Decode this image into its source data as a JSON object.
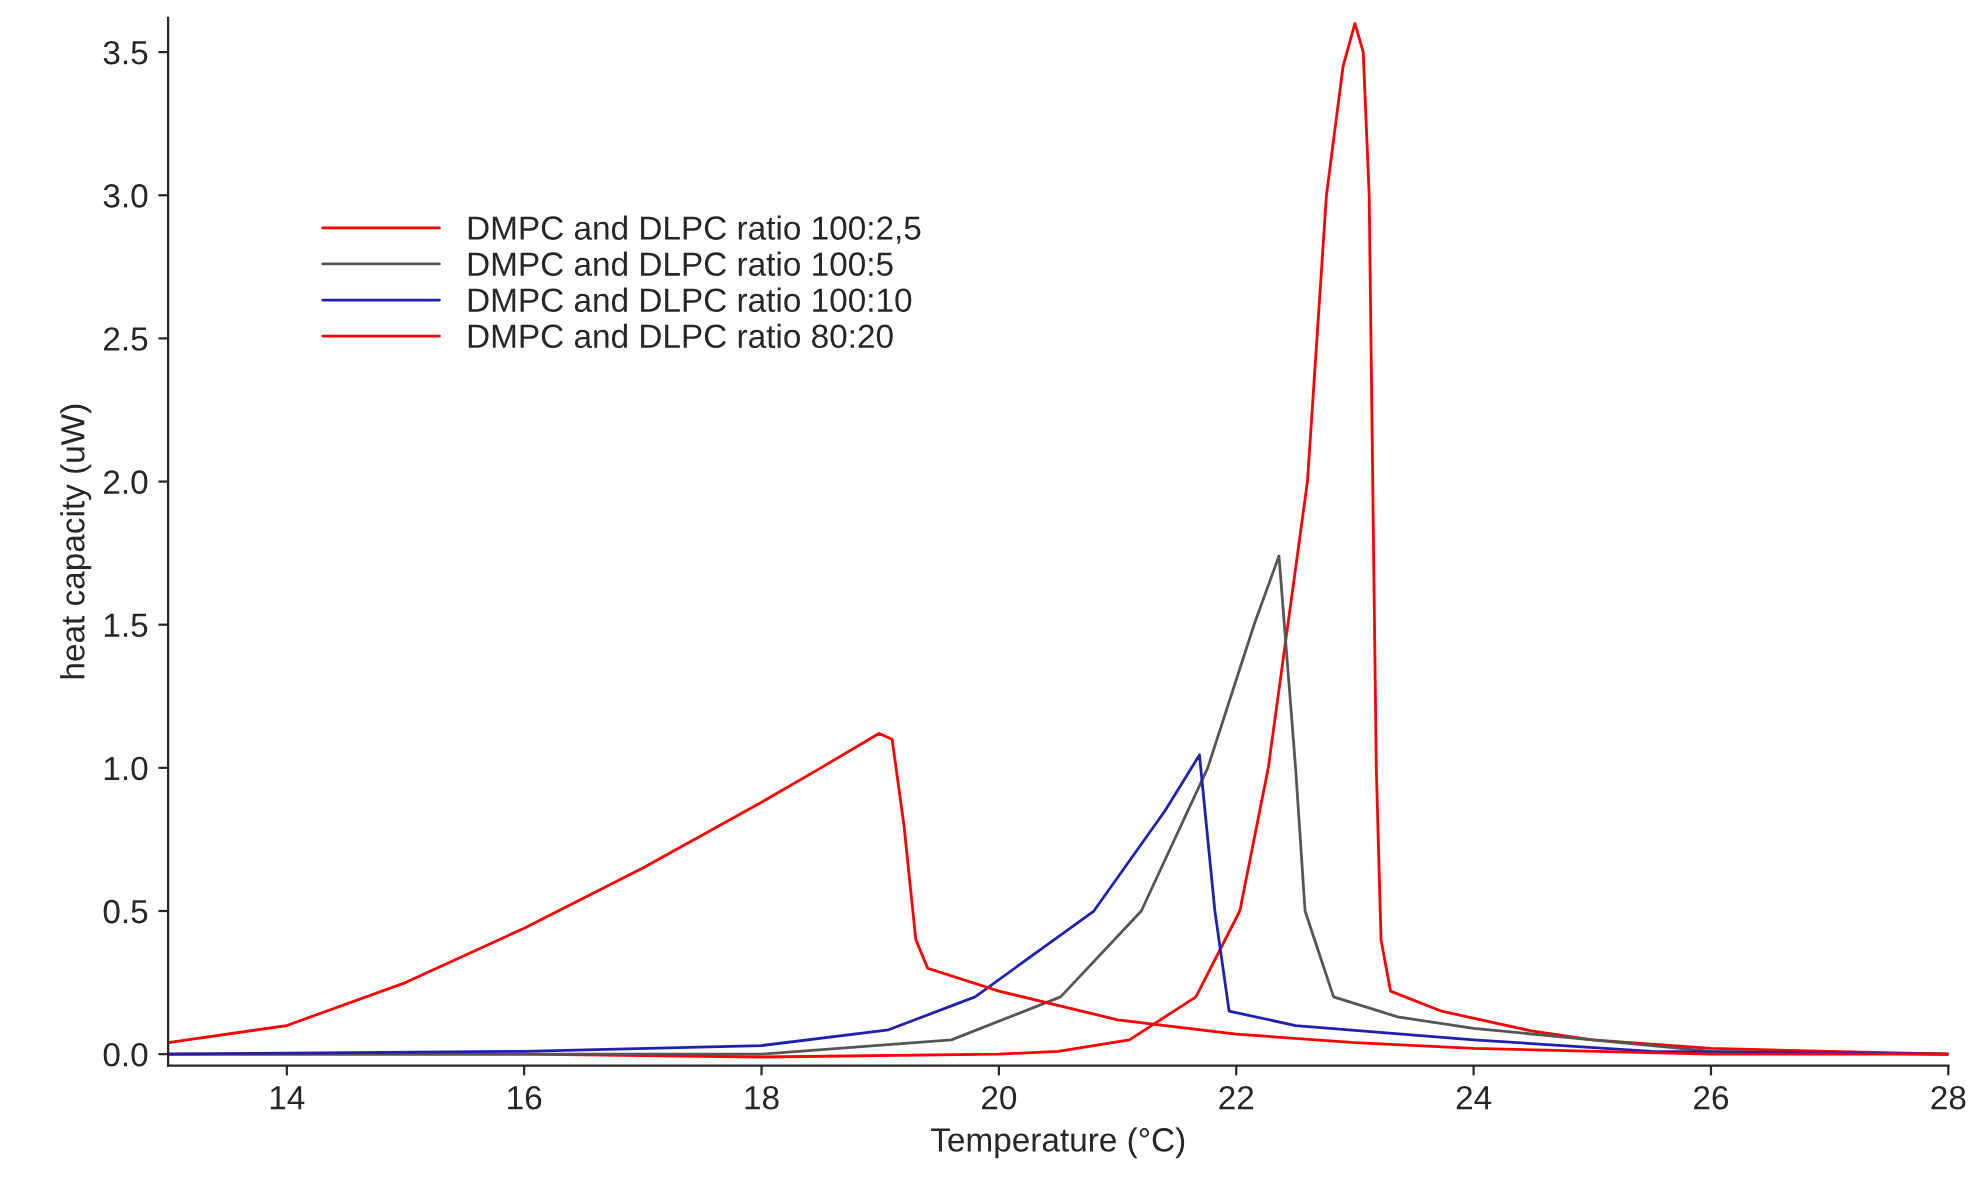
{
  "chart_data": {
    "type": "line",
    "xlabel": "Temperature (°C)",
    "ylabel": "heat capacity (uW)",
    "xlim": [
      13,
      28
    ],
    "ylim": [
      -0.04,
      3.62
    ],
    "xticks": [
      14,
      16,
      18,
      20,
      22,
      24,
      26,
      28
    ],
    "yticks": [
      {
        "value": 0,
        "label": "0.0"
      },
      {
        "value": 0.5,
        "label": "0.5"
      },
      {
        "value": 1,
        "label": "1.0"
      },
      {
        "value": 1.5,
        "label": "1.5"
      },
      {
        "value": 2,
        "label": "2.0"
      },
      {
        "value": 2.5,
        "label": "2.5"
      },
      {
        "value": 3,
        "label": "3.0"
      },
      {
        "value": 3.5,
        "label": "3.5"
      }
    ],
    "grid": false,
    "legend": "top left",
    "marker": "none",
    "line_style": "solid",
    "series": [
      {
        "name": "DMPC and DLPC ratio 100:2,5",
        "color": "#ff0000",
        "x": [
          13,
          16,
          18,
          20,
          20.5,
          21.1,
          21.66,
          22.03,
          22.27,
          22.6,
          22.76,
          22.9,
          23.0,
          23.07,
          23.12,
          23.15,
          23.18,
          23.22,
          23.3,
          23.73,
          24.5,
          25,
          26,
          27,
          28
        ],
        "values": [
          0.0,
          0.0,
          -0.01,
          0.0,
          0.01,
          0.05,
          0.2,
          0.5,
          1.0,
          2.0,
          3.0,
          3.45,
          3.6,
          3.5,
          3.0,
          2.0,
          1.0,
          0.4,
          0.22,
          0.15,
          0.08,
          0.05,
          0.02,
          0.01,
          0.0
        ]
      },
      {
        "name": "DMPC and DLPC ratio 100:5",
        "color": "#555555",
        "x": [
          13,
          16,
          18,
          19.6,
          20.52,
          21.2,
          21.76,
          22.15,
          22.36,
          22.5,
          22.58,
          22.82,
          23.36,
          24,
          25,
          26,
          28
        ],
        "values": [
          0.0,
          0.0,
          0.0,
          0.05,
          0.2,
          0.5,
          1.0,
          1.5,
          1.74,
          1.0,
          0.5,
          0.2,
          0.13,
          0.09,
          0.05,
          0.01,
          0.0
        ]
      },
      {
        "name": "DMPC and DLPC ratio 100:10",
        "color": "#2020b0",
        "x": [
          13,
          16,
          18,
          19.07,
          19.8,
          20.8,
          21.4,
          21.69,
          21.82,
          21.94,
          22.5,
          24,
          25.5,
          28
        ],
        "values": [
          0.0,
          0.01,
          0.03,
          0.085,
          0.2,
          0.5,
          0.85,
          1.045,
          0.5,
          0.15,
          0.1,
          0.05,
          0.01,
          0.0
        ]
      },
      {
        "name": "DMPC and DLPC ratio 80:20",
        "color": "#ff0000",
        "x": [
          13,
          14,
          15,
          16,
          17,
          18,
          18.5,
          18.99,
          19.1,
          19.2,
          19.3,
          19.4,
          20,
          21,
          22,
          23,
          24,
          26,
          28
        ],
        "values": [
          0.04,
          0.1,
          0.25,
          0.44,
          0.65,
          0.88,
          1.0,
          1.12,
          1.1,
          0.8,
          0.4,
          0.3,
          0.22,
          0.12,
          0.07,
          0.04,
          0.02,
          0.0,
          0.0
        ]
      }
    ]
  }
}
